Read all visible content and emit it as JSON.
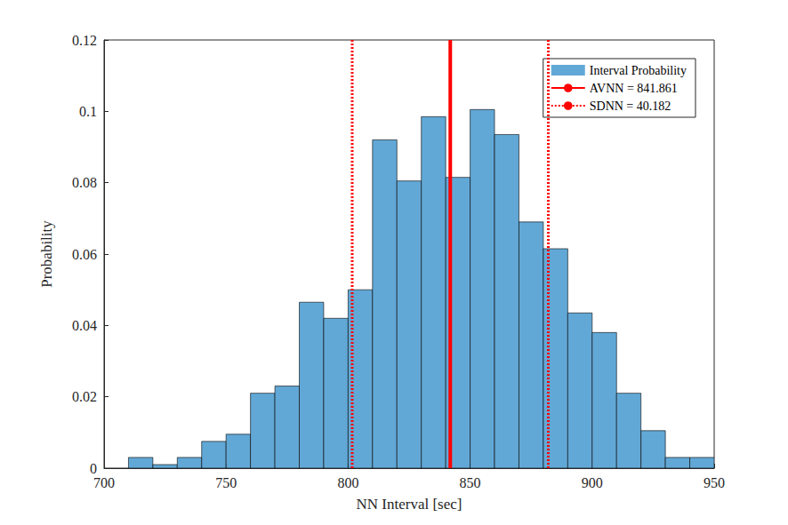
{
  "chart_data": {
    "type": "histogram",
    "x_label": "NN Interval [sec]",
    "y_label": "Probability",
    "bins": [
      710,
      720,
      730,
      740,
      750,
      760,
      770,
      780,
      790,
      800,
      810,
      820,
      830,
      840,
      850,
      860,
      870,
      880,
      890,
      900,
      910,
      920,
      930,
      940,
      950
    ],
    "series": [
      {
        "name": "Interval Probability",
        "color": "#62a8d6",
        "values": [
          0.003,
          0.001,
          0.003,
          0.0075,
          0.0095,
          0.021,
          0.023,
          0.0465,
          0.042,
          0.05,
          0.092,
          0.0805,
          0.0985,
          0.0815,
          0.1005,
          0.0935,
          0.069,
          0.0615,
          0.0435,
          0.038,
          0.021,
          0.0105,
          0.003,
          0.003
        ]
      }
    ],
    "reference_lines": [
      {
        "name": "AVNN = 841.861",
        "value": 841.861,
        "color": "#ff0000",
        "line_style": "solid"
      },
      {
        "name": "SDNN = 40.182",
        "value": 40.182,
        "color": "#ff0000",
        "line_style": "dotted"
      }
    ],
    "xlim": [
      700,
      950
    ],
    "xticks": [
      700,
      750,
      800,
      850,
      900,
      950
    ],
    "ylim": [
      0,
      0.12
    ],
    "yticks": [
      0,
      0.02,
      0.04,
      0.06,
      0.08,
      0.1,
      0.12
    ],
    "grid": false,
    "legend": "top-right"
  }
}
